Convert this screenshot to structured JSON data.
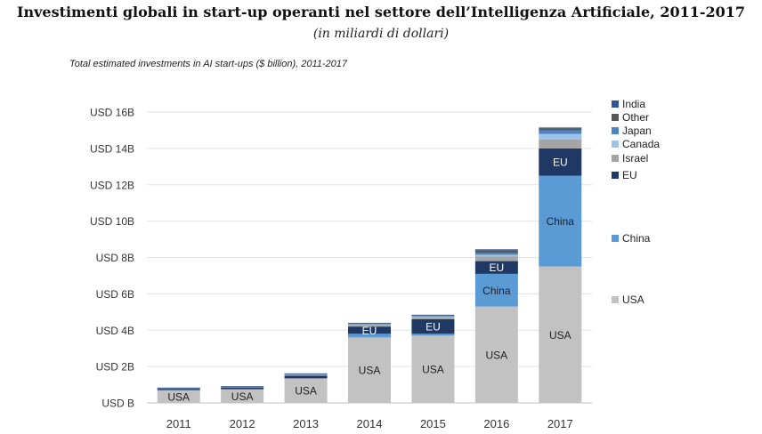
{
  "header": {
    "title": "Investimenti globali in start-up operanti nel settore dell’Intelligenza Artificiale, 2011-2017",
    "subtitle": "(in miliardi di dollari)"
  },
  "chart_data": {
    "type": "bar",
    "stacked": true,
    "title": "Total estimated investments in AI start-ups ($ billion), 2011-2017",
    "categories": [
      "2011",
      "2012",
      "2013",
      "2014",
      "2015",
      "2016",
      "2017"
    ],
    "y_ticks": [
      {
        "value": 0,
        "label": "USD B"
      },
      {
        "value": 2,
        "label": "USD 2B"
      },
      {
        "value": 4,
        "label": "USD 4B"
      },
      {
        "value": 6,
        "label": "USD 6B"
      },
      {
        "value": 8,
        "label": "USD 8B"
      },
      {
        "value": 10,
        "label": "USD 10B"
      },
      {
        "value": 12,
        "label": "USD 12B"
      },
      {
        "value": 14,
        "label": "USD 14B"
      },
      {
        "value": 16,
        "label": "USD 16B"
      }
    ],
    "ylim": [
      0,
      16
    ],
    "grid": true,
    "legend_position": "right",
    "series": [
      {
        "name": "USA",
        "color": "#c2c2c2",
        "values": [
          0.7,
          0.75,
          1.35,
          3.6,
          3.7,
          5.3,
          7.5
        ],
        "bar_labels": [
          "USA",
          "USA",
          "USA",
          "USA",
          "USA",
          "USA",
          "USA"
        ]
      },
      {
        "name": "China",
        "color": "#5b9bd5",
        "values": [
          0,
          0,
          0,
          0.2,
          0.1,
          1.8,
          5.0
        ],
        "bar_labels": [
          "",
          "",
          "",
          "",
          "",
          "China",
          "China"
        ]
      },
      {
        "name": "EU",
        "color": "#1f3864",
        "values": [
          0.08,
          0.1,
          0.15,
          0.4,
          0.8,
          0.7,
          1.5
        ],
        "bar_labels": [
          "",
          "",
          "",
          "EU",
          "EU",
          "EU",
          "EU"
        ]
      },
      {
        "name": "Israel",
        "color": "#a5a5a5",
        "values": [
          0.02,
          0.03,
          0.05,
          0.08,
          0.1,
          0.25,
          0.5
        ],
        "bar_labels": [
          "",
          "",
          "",
          "",
          "",
          "",
          ""
        ]
      },
      {
        "name": "Canada",
        "color": "#9dc3e6",
        "values": [
          0.01,
          0.01,
          0.02,
          0.05,
          0.05,
          0.1,
          0.3
        ],
        "bar_labels": [
          "",
          "",
          "",
          "",
          "",
          "",
          ""
        ]
      },
      {
        "name": "Japan",
        "color": "#4a86c5",
        "values": [
          0.01,
          0.01,
          0.02,
          0.03,
          0.05,
          0.1,
          0.2
        ],
        "bar_labels": [
          "",
          "",
          "",
          "",
          "",
          "",
          ""
        ]
      },
      {
        "name": "Other",
        "color": "#595959",
        "values": [
          0.01,
          0.01,
          0.02,
          0.02,
          0.03,
          0.15,
          0.1
        ],
        "bar_labels": [
          "",
          "",
          "",
          "",
          "",
          "",
          ""
        ]
      },
      {
        "name": "India",
        "color": "#2e5597",
        "values": [
          0.01,
          0.01,
          0.01,
          0.02,
          0.02,
          0.05,
          0.05
        ],
        "bar_labels": [
          "",
          "",
          "",
          "",
          "",
          "",
          ""
        ]
      }
    ],
    "legend": [
      {
        "label": "India",
        "color": "#2e5597"
      },
      {
        "label": "Other",
        "color": "#595959"
      },
      {
        "label": "Japan",
        "color": "#4a86c5"
      },
      {
        "label": "Canada",
        "color": "#9dc3e6"
      },
      {
        "label": "Israel",
        "color": "#a5a5a5"
      },
      {
        "label": "EU",
        "color": "#1f3864"
      },
      {
        "label": "China",
        "color": "#5b9bd5"
      },
      {
        "label": "USA",
        "color": "#c2c2c2"
      }
    ]
  }
}
